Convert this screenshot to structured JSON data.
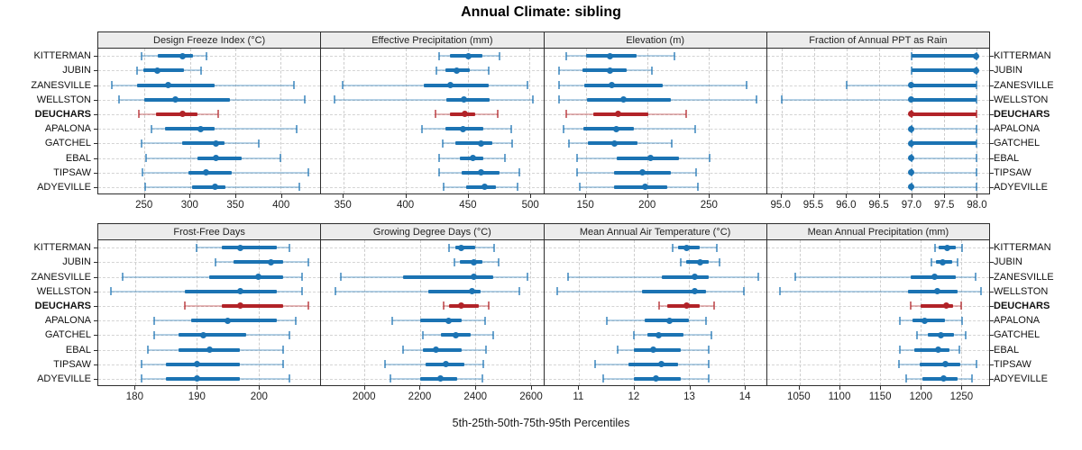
{
  "title": "Annual Climate: sibling",
  "caption": "5th-25th-50th-75th-95th Percentiles",
  "stations": [
    "KITTERMAN",
    "JUBIN",
    "ZANESVILLE",
    "WELLSTON",
    "DEUCHARS",
    "APALONA",
    "GATCHEL",
    "EBAL",
    "TIPSAW",
    "ADYEVILLE"
  ],
  "highlight_station": "DEUCHARS",
  "percentile_labels": [
    "5th",
    "25th",
    "50th",
    "75th",
    "95th"
  ],
  "colors": {
    "normal": "#1b73b3",
    "highlight": "#b22328",
    "strip_bg": "#ececec",
    "border": "#2d2d2d",
    "grid": "#d0d0d0"
  },
  "chart_data": [
    {
      "type": "dotplot-percentiles",
      "title": "Design Freeze Index (°C)",
      "xlim": [
        199,
        444
      ],
      "ticks": [
        250,
        300,
        350,
        400
      ],
      "tick_labels": [
        "250",
        "300",
        "350",
        "400"
      ],
      "values": [
        [
          247,
          265,
          292,
          303,
          318
        ],
        [
          242,
          249,
          264,
          294,
          312
        ],
        [
          214,
          242,
          276,
          327,
          415
        ],
        [
          222,
          250,
          284,
          344,
          427
        ],
        [
          244,
          263,
          292,
          308,
          331
        ],
        [
          258,
          273,
          312,
          327,
          418
        ],
        [
          247,
          292,
          329,
          338,
          376
        ],
        [
          252,
          308,
          329,
          357,
          400
        ],
        [
          248,
          298,
          318,
          346,
          431
        ],
        [
          251,
          302,
          328,
          339,
          421
        ]
      ]
    },
    {
      "type": "dotplot-percentiles",
      "title": "Effective Precipitation (mm)",
      "xlim": [
        332,
        511
      ],
      "ticks": [
        350,
        400,
        450,
        500
      ],
      "tick_labels": [
        "350",
        "400",
        "450",
        "500"
      ],
      "values": [
        [
          427,
          436,
          451,
          462,
          476
        ],
        [
          425,
          432,
          441,
          452,
          467
        ],
        [
          349,
          415,
          436,
          467,
          498
        ],
        [
          343,
          433,
          447,
          468,
          503
        ],
        [
          424,
          436,
          448,
          456,
          474
        ],
        [
          413,
          432,
          446,
          463,
          485
        ],
        [
          430,
          440,
          461,
          470,
          486
        ],
        [
          427,
          444,
          454,
          463,
          480
        ],
        [
          427,
          445,
          461,
          476,
          492
        ],
        [
          431,
          449,
          464,
          473,
          490
        ]
      ]
    },
    {
      "type": "dotplot-percentiles",
      "title": "Elevation (m)",
      "xlim": [
        116,
        297
      ],
      "ticks": [
        150,
        200,
        250
      ],
      "tick_labels": [
        "150",
        "200",
        "250"
      ],
      "values": [
        [
          134,
          150,
          170,
          191,
          222
        ],
        [
          128,
          147,
          170,
          183,
          204
        ],
        [
          128,
          149,
          171,
          213,
          281
        ],
        [
          128,
          151,
          181,
          219,
          289
        ],
        [
          134,
          156,
          176,
          201,
          232
        ],
        [
          132,
          148,
          175,
          189,
          239
        ],
        [
          136,
          152,
          173,
          192,
          220
        ],
        [
          143,
          175,
          203,
          226,
          251
        ],
        [
          143,
          173,
          196,
          219,
          240
        ],
        [
          145,
          173,
          198,
          216,
          241
        ]
      ]
    },
    {
      "type": "dotplot-percentiles",
      "title": "Fraction of Annual PPT as Rain",
      "xlim": [
        94.78,
        98.2
      ],
      "ticks": [
        95.0,
        95.5,
        96.0,
        96.5,
        97.0,
        97.5,
        98.0
      ],
      "tick_labels": [
        "95.0",
        "95.5",
        "96.0",
        "96.5",
        "97.0",
        "97.5",
        "98.0"
      ],
      "values": [
        [
          97,
          97,
          98,
          98,
          98
        ],
        [
          97,
          97,
          98,
          98,
          98
        ],
        [
          96,
          97,
          97,
          98,
          98
        ],
        [
          95,
          97,
          97,
          98,
          98
        ],
        [
          97,
          97,
          97,
          98,
          98
        ],
        [
          97,
          97,
          97,
          97,
          98
        ],
        [
          97,
          97,
          97,
          98,
          98
        ],
        [
          97,
          97,
          97,
          97,
          98
        ],
        [
          97,
          97,
          97,
          97,
          98
        ],
        [
          97,
          97,
          97,
          97,
          98
        ]
      ]
    },
    {
      "type": "dotplot-percentiles",
      "title": "Frost-Free Days",
      "xlim": [
        174,
        210
      ],
      "ticks": [
        180,
        190,
        200
      ],
      "tick_labels": [
        "180",
        "190",
        "200"
      ],
      "values": [
        [
          190,
          194,
          197,
          203,
          205
        ],
        [
          193,
          196,
          202,
          204,
          208
        ],
        [
          178,
          192,
          200,
          204,
          207
        ],
        [
          176,
          188,
          197,
          203,
          207
        ],
        [
          188,
          194,
          197,
          204,
          208
        ],
        [
          183,
          189,
          195,
          203,
          206
        ],
        [
          183,
          187,
          191,
          198,
          205
        ],
        [
          182,
          187,
          192,
          197,
          204
        ],
        [
          181,
          185,
          190,
          197,
          204
        ],
        [
          181,
          185,
          190,
          197,
          205
        ]
      ]
    },
    {
      "type": "dotplot-percentiles",
      "title": "Growing Degree Days (°C)",
      "xlim": [
        1843,
        2647
      ],
      "ticks": [
        2000,
        2200,
        2400,
        2600
      ],
      "tick_labels": [
        "2000",
        "2200",
        "2400",
        "2600"
      ],
      "values": [
        [
          2305,
          2330,
          2350,
          2400,
          2470
        ],
        [
          2325,
          2345,
          2395,
          2425,
          2485
        ],
        [
          1915,
          2140,
          2395,
          2465,
          2590
        ],
        [
          1895,
          2230,
          2390,
          2420,
          2560
        ],
        [
          2285,
          2305,
          2350,
          2415,
          2450
        ],
        [
          2100,
          2200,
          2305,
          2350,
          2435
        ],
        [
          2210,
          2275,
          2330,
          2385,
          2465
        ],
        [
          2140,
          2210,
          2260,
          2350,
          2440
        ],
        [
          2075,
          2220,
          2295,
          2360,
          2430
        ],
        [
          2095,
          2200,
          2275,
          2335,
          2425
        ]
      ]
    },
    {
      "type": "dotplot-percentiles",
      "title": "Mean Annual Air Temperature (°C)",
      "xlim": [
        10.37,
        14.4
      ],
      "ticks": [
        11,
        12,
        13,
        14
      ],
      "tick_labels": [
        "11",
        "12",
        "13",
        "14"
      ],
      "values": [
        [
          12.7,
          12.8,
          12.95,
          13.2,
          13.5
        ],
        [
          12.85,
          12.95,
          13.2,
          13.35,
          13.55
        ],
        [
          10.8,
          12.5,
          13.1,
          13.35,
          14.25
        ],
        [
          10.6,
          12.15,
          13.1,
          13.3,
          14.0
        ],
        [
          12.45,
          12.6,
          12.95,
          13.2,
          13.45
        ],
        [
          11.5,
          12.2,
          12.65,
          13.0,
          13.3
        ],
        [
          12.0,
          12.25,
          12.45,
          12.9,
          13.4
        ],
        [
          11.7,
          12.0,
          12.35,
          12.85,
          13.35
        ],
        [
          11.3,
          11.9,
          12.5,
          12.8,
          13.35
        ],
        [
          11.45,
          12.0,
          12.4,
          12.85,
          13.35
        ]
      ]
    },
    {
      "type": "dotplot-percentiles",
      "title": "Mean Annual Precipitation (mm)",
      "xlim": [
        1010,
        1285
      ],
      "ticks": [
        1050,
        1100,
        1150,
        1200,
        1250
      ],
      "tick_labels": [
        "1050",
        "1100",
        "1150",
        "1200",
        "1250"
      ],
      "values": [
        [
          1218,
          1223,
          1233,
          1244,
          1252
        ],
        [
          1214,
          1219,
          1228,
          1239,
          1246
        ],
        [
          1045,
          1188,
          1217,
          1244,
          1268
        ],
        [
          1026,
          1184,
          1221,
          1246,
          1275
        ],
        [
          1188,
          1200,
          1232,
          1240,
          1250
        ],
        [
          1174,
          1190,
          1205,
          1230,
          1251
        ],
        [
          1196,
          1209,
          1225,
          1242,
          1256
        ],
        [
          1174,
          1192,
          1222,
          1236,
          1248
        ],
        [
          1173,
          1199,
          1231,
          1249,
          1269
        ],
        [
          1182,
          1202,
          1229,
          1246,
          1264
        ]
      ]
    }
  ]
}
